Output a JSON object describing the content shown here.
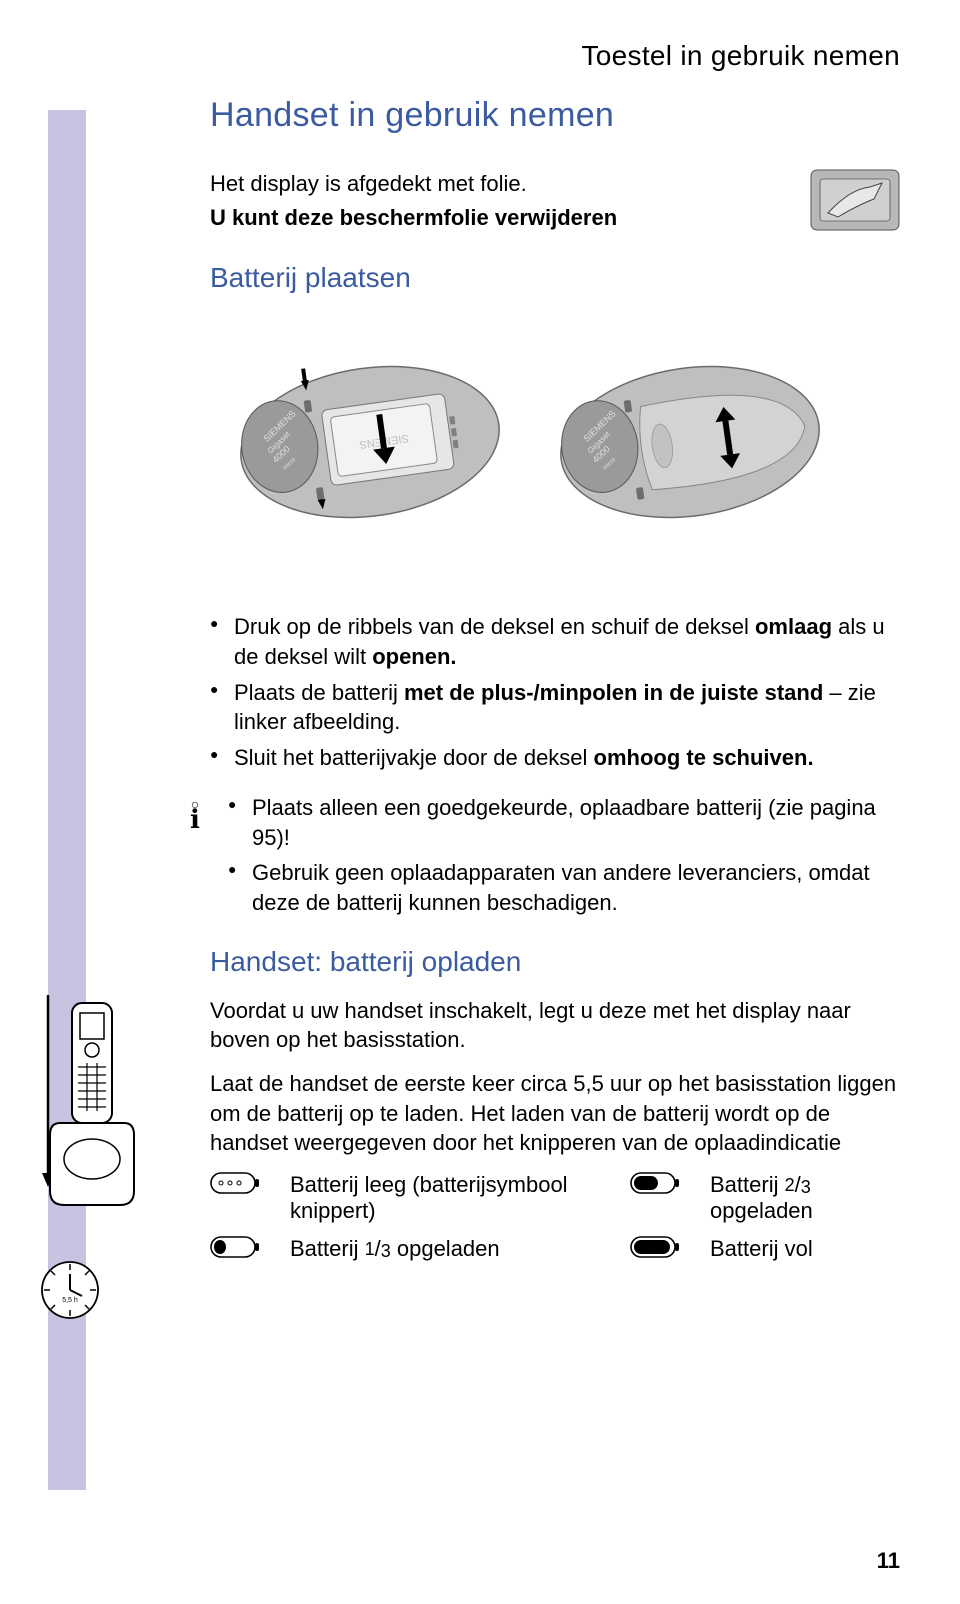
{
  "colors": {
    "heading_blue": "#3a5ba0",
    "text_black": "#000000",
    "lavender": "#c7c4e2",
    "phone_grey": "#bfbfbf",
    "phone_grey_dark": "#9a9a9a",
    "background": "#ffffff"
  },
  "typography": {
    "header_size_pt": 21,
    "h1_size_pt": 26,
    "h2_size_pt": 21,
    "body_size_pt": 16
  },
  "header": {
    "right_title": "Toestel in gebruik nemen"
  },
  "section1": {
    "title": "Handset in gebruik nemen",
    "intro_line1": "Het display is afgedekt met folie.",
    "intro_line2_prefix": "U kunt deze beschermfolie verwijderen"
  },
  "section2": {
    "title": "Batterij plaatsen",
    "bullets": [
      "Druk op de ribbels van de deksel en schuif de deksel <b>omlaag</b> als u de deksel wilt <b>openen.</b>",
      "Plaats de batterij <b>met de plus-/minpolen in de juiste stand</b> – zie linker afbeelding.",
      "Sluit het batterijvakje door de deksel <b>omhoog te schuiven.</b>"
    ],
    "info_bullets": [
      "Plaats alleen een goedgekeurde, oplaadbare batterij (zie pagina 95)!",
      "Gebruik geen oplaadapparaten van andere leveranciers, omdat deze de batterij kunnen beschadigen."
    ]
  },
  "section3": {
    "title": "Handset: batterij opladen",
    "para1": "Voordat u uw handset inschakelt, legt u deze met het display naar boven op het basisstation.",
    "para2": "Laat de handset de eerste keer circa 5,5 uur op het basisstation liggen om de batterij op te laden. Het laden van de batterij wordt op de handset weergegeven door het knipperen van de oplaadindicatie",
    "battery_states": [
      {
        "icon_fill": 0,
        "label": "Batterij leeg (batterijsymbool knippert)"
      },
      {
        "icon_fill": 0.667,
        "label_prefix": "Batterij ",
        "frac_num": "2",
        "frac_den": "3",
        "label_suffix": " opgeladen"
      },
      {
        "icon_fill": 0.333,
        "label_prefix": "Batterij ",
        "frac_num": "1",
        "frac_den": "3",
        "label_suffix": " opgeladen"
      },
      {
        "icon_fill": 1.0,
        "label": "Batterij vol"
      }
    ]
  },
  "sidebar": {
    "clock_label": "5,5 h"
  },
  "page_number": "11"
}
